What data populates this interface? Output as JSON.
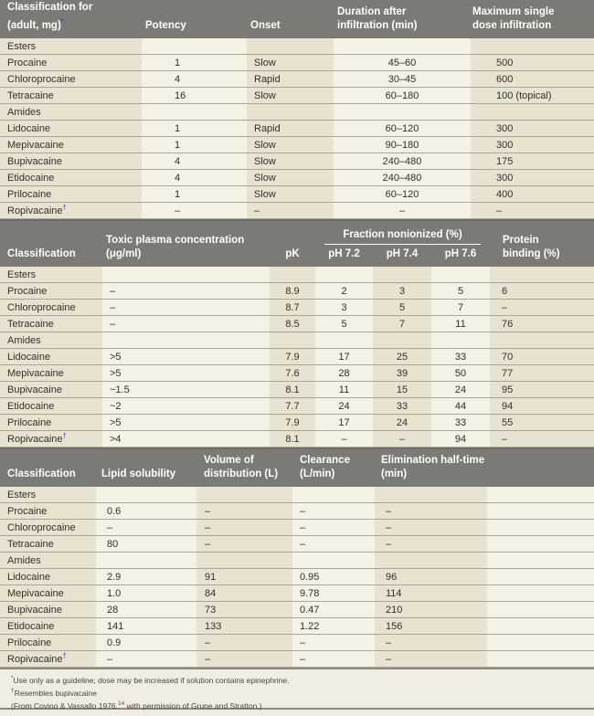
{
  "colors": {
    "page_bg": "#f1eee1",
    "header_bg": "#7b7a76",
    "header_text": "#ffffff",
    "col_tan": "#e8e3d1",
    "col_light": "#f4f1e5",
    "row_line": "#aba795",
    "body_text": "#302f2b",
    "marker": "#4c4b9e",
    "divider": "#6e6d68",
    "foot_rule": "#8b8a84",
    "foot_text": "#45433c",
    "footnote_ref": "#7a4538"
  },
  "t1": {
    "header": {
      "c1a": "Classification for",
      "c1b": "(adult, mg)",
      "c1m": "*",
      "c2": "Potency",
      "c3": "Onset",
      "c4a": "Duration after",
      "c4b": "infiltration (min)",
      "c5a": "Maximum single",
      "c5b": "dose infiltration"
    },
    "rows": [
      {
        "group": true,
        "name": "Esters"
      },
      {
        "name": "Procaine",
        "cells": [
          "1",
          "Slow",
          "45–60",
          "500"
        ]
      },
      {
        "name": "Chloroprocaine",
        "cells": [
          "4",
          "Rapid",
          "30–45",
          "600"
        ]
      },
      {
        "name": "Tetracaine",
        "cells": [
          "16",
          "Slow",
          "60–180",
          "100 (topical)"
        ]
      },
      {
        "group": true,
        "name": "Amides"
      },
      {
        "name": "Lidocaine",
        "cells": [
          "1",
          "Rapid",
          "60–120",
          "300"
        ]
      },
      {
        "name": "Mepivacaine",
        "cells": [
          "1",
          "Slow",
          "90–180",
          "300"
        ]
      },
      {
        "name": "Bupivacaine",
        "cells": [
          "4",
          "Slow",
          "240–480",
          "175"
        ]
      },
      {
        "name": "Etidocaine",
        "cells": [
          "4",
          "Slow",
          "240–480",
          "300"
        ]
      },
      {
        "name": "Prilocaine",
        "cells": [
          "1",
          "Slow",
          "60–120",
          "400"
        ]
      },
      {
        "name": "Ropivacaine",
        "marker": "†",
        "cells": [
          "–",
          "–",
          "–",
          "–"
        ]
      }
    ]
  },
  "t2": {
    "header": {
      "c1": "Classification",
      "c2a": "Toxic plasma concentration",
      "c2b": "(μg/ml)",
      "c3": "pK",
      "grp": "Fraction nonionized (%)",
      "g1": "pH 7.2",
      "g2": "pH 7.4",
      "g3": "pH 7.6",
      "c7a": "Protein",
      "c7b": "binding (%)"
    },
    "rows": [
      {
        "group": true,
        "name": "Esters"
      },
      {
        "name": "Procaine",
        "cells": [
          "–",
          "8.9",
          "2",
          "3",
          "5",
          "6"
        ]
      },
      {
        "name": "Chloroprocaine",
        "cells": [
          "–",
          "8.7",
          "3",
          "5",
          "7",
          "–"
        ]
      },
      {
        "name": "Tetracaine",
        "cells": [
          "–",
          "8.5",
          "5",
          "7",
          "11",
          "76"
        ]
      },
      {
        "group": true,
        "name": "Amides"
      },
      {
        "name": "Lidocaine",
        "cells": [
          ">5",
          "7.9",
          "17",
          "25",
          "33",
          "70"
        ]
      },
      {
        "name": "Mepivacaine",
        "cells": [
          ">5",
          "7.6",
          "28",
          "39",
          "50",
          "77"
        ]
      },
      {
        "name": "Bupivacaine",
        "cells": [
          "~1.5",
          "8.1",
          "11",
          "15",
          "24",
          "95"
        ]
      },
      {
        "name": "Etidocaine",
        "cells": [
          "~2",
          "7.7",
          "24",
          "33",
          "44",
          "94"
        ]
      },
      {
        "name": "Prilocaine",
        "cells": [
          ">5",
          "7.9",
          "17",
          "24",
          "33",
          "55"
        ]
      },
      {
        "name": "Ropivacaine",
        "marker": "†",
        "cells": [
          ">4",
          "8.1",
          "–",
          "–",
          "94",
          "–"
        ]
      }
    ]
  },
  "t3": {
    "header": {
      "c1": "Classification",
      "c2": "Lipid solubility",
      "c3a": "Volume of",
      "c3b": "distribution (L)",
      "c4a": "Clearance",
      "c4b": "(L/min)",
      "c5a": "Elimination half-time",
      "c5b": "(min)"
    },
    "rows": [
      {
        "group": true,
        "name": "Esters"
      },
      {
        "name": "Procaine",
        "cells": [
          "0.6",
          "–",
          "–",
          "–"
        ]
      },
      {
        "name": "Chloroprocaine",
        "cells": [
          "–",
          "–",
          "–",
          "–"
        ]
      },
      {
        "name": "Tetracaine",
        "cells": [
          "80",
          "–",
          "–",
          "–"
        ]
      },
      {
        "group": true,
        "name": "Amides"
      },
      {
        "name": "Lidocaine",
        "cells": [
          "2.9",
          "91",
          "0.95",
          "96"
        ]
      },
      {
        "name": "Mepivacaine",
        "cells": [
          "1.0",
          "84",
          "9.78",
          "114"
        ]
      },
      {
        "name": "Bupivacaine",
        "cells": [
          "28",
          "73",
          "0.47",
          "210"
        ]
      },
      {
        "name": "Etidocaine",
        "cells": [
          "141",
          "133",
          "1.22",
          "156"
        ]
      },
      {
        "name": "Prilocaine",
        "cells": [
          "0.9",
          "–",
          "–",
          "–"
        ]
      },
      {
        "name": "Ropivacaine",
        "marker": "†",
        "cells": [
          "–",
          "–",
          "–",
          "–"
        ]
      }
    ]
  },
  "footnotes": {
    "f1m": "*",
    "f1": "Use only as a guideline; dose may be increased if solution contains epinephrine.",
    "f2m": "†",
    "f2": "Resembles bupivacaine",
    "f3a": "(From Covino & Vassallo 1976,",
    "f3ref": "14",
    "f3b": " with permission of Grune and Stratton.)"
  }
}
